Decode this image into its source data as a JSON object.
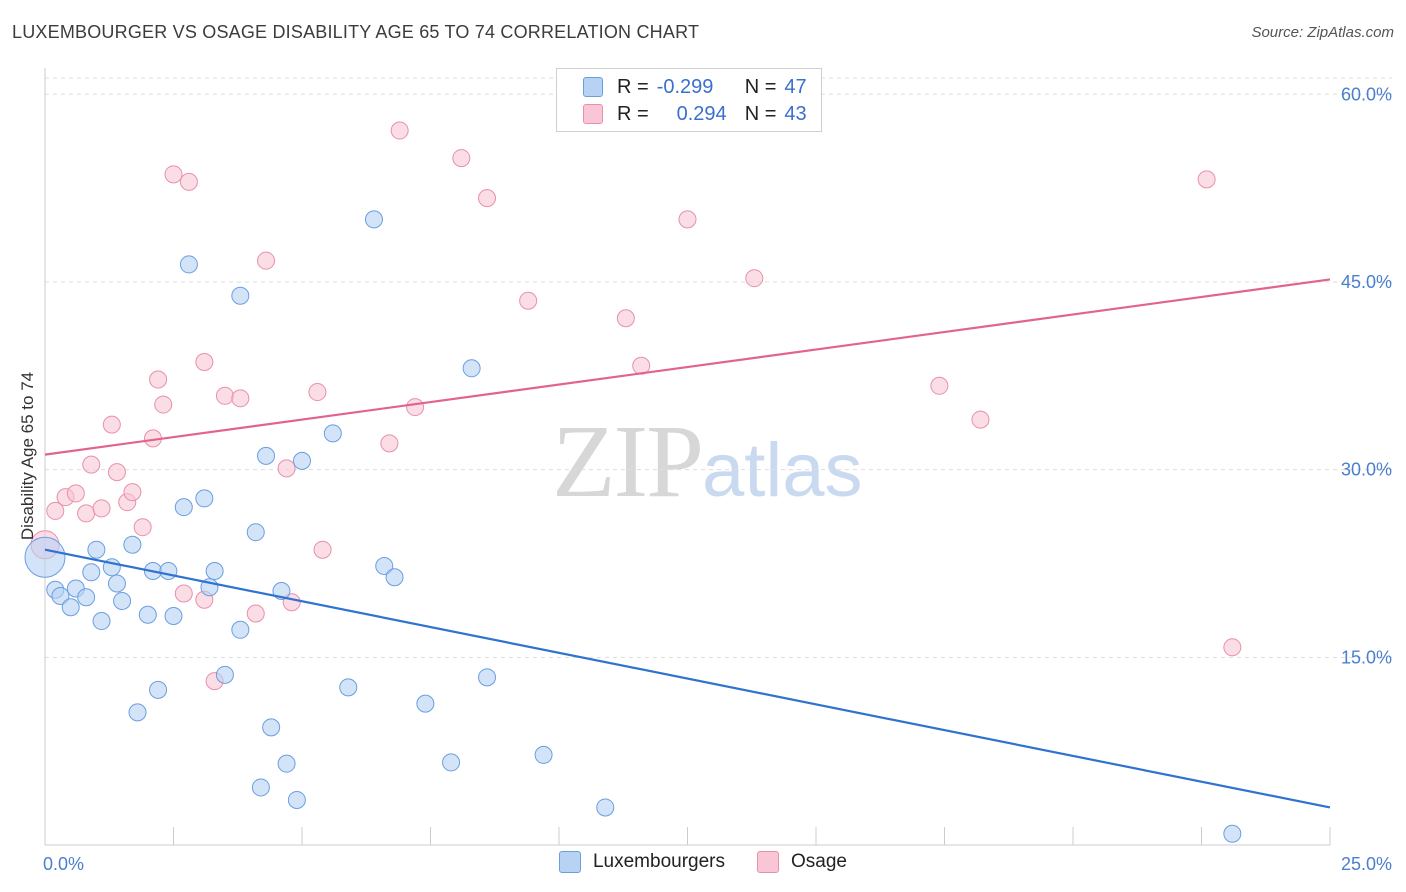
{
  "header": {
    "title": "LUXEMBOURGER VS OSAGE DISABILITY AGE 65 TO 74 CORRELATION CHART",
    "source": "Source: ZipAtlas.com"
  },
  "watermark": {
    "zip": "ZIP",
    "atlas": "atlas"
  },
  "legend": {
    "rows": [
      {
        "r_label": "R =",
        "r_value": "-0.299",
        "n_label": "N =",
        "n_value": "47"
      },
      {
        "r_label": "R =",
        "r_value": "0.294",
        "n_label": "N =",
        "n_value": "43"
      }
    ]
  },
  "bottom_legend": {
    "items": [
      "Luxembourgers",
      "Osage"
    ]
  },
  "colors": {
    "blue_fill": "#b8d2f3",
    "blue_stroke": "#6a9ee0",
    "blue_line": "#2f72d0",
    "pink_fill": "#f8c6d5",
    "pink_stroke": "#e890ab",
    "pink_line": "#e0648e",
    "grid": "#dddddd",
    "tick_text": "#4a7fd0"
  },
  "chart_data": {
    "type": "scatter",
    "title": "LUXEMBOURGER VS OSAGE DISABILITY AGE 65 TO 74 CORRELATION CHART",
    "xlabel": "",
    "ylabel": "Disability Age 65 to 74",
    "xlim": [
      0,
      25
    ],
    "ylim": [
      0,
      60
    ],
    "x_tick_labels": [
      "0.0%",
      "25.0%"
    ],
    "y_ticks": [
      15,
      30,
      45,
      60
    ],
    "y_tick_labels": [
      "15.0%",
      "30.0%",
      "45.0%",
      "60.0%"
    ],
    "grid": true,
    "series": [
      {
        "name": "Luxembourgers",
        "R": -0.299,
        "N": 47,
        "trend": {
          "x": [
            0,
            25
          ],
          "y": [
            23.6,
            3.0
          ]
        },
        "points": [
          [
            0.2,
            20.4
          ],
          [
            0.3,
            19.9
          ],
          [
            0.5,
            19.0
          ],
          [
            0.6,
            20.5
          ],
          [
            0.8,
            19.8
          ],
          [
            0.9,
            21.8
          ],
          [
            1.0,
            23.6
          ],
          [
            1.1,
            17.9
          ],
          [
            1.3,
            22.2
          ],
          [
            1.4,
            20.9
          ],
          [
            1.5,
            19.5
          ],
          [
            1.7,
            24.0
          ],
          [
            1.8,
            10.6
          ],
          [
            2.0,
            18.4
          ],
          [
            2.1,
            21.9
          ],
          [
            2.2,
            12.4
          ],
          [
            2.4,
            21.9
          ],
          [
            2.5,
            18.3
          ],
          [
            2.7,
            27.0
          ],
          [
            2.8,
            46.4
          ],
          [
            3.1,
            27.7
          ],
          [
            3.2,
            20.6
          ],
          [
            3.3,
            21.9
          ],
          [
            3.5,
            13.6
          ],
          [
            3.8,
            17.2
          ],
          [
            3.8,
            43.9
          ],
          [
            4.1,
            25.0
          ],
          [
            4.2,
            4.6
          ],
          [
            4.3,
            31.1
          ],
          [
            4.4,
            9.4
          ],
          [
            4.6,
            20.3
          ],
          [
            4.7,
            6.5
          ],
          [
            4.9,
            3.6
          ],
          [
            5.0,
            30.7
          ],
          [
            5.6,
            32.9
          ],
          [
            5.9,
            12.6
          ],
          [
            6.4,
            50.0
          ],
          [
            6.6,
            22.3
          ],
          [
            6.8,
            21.4
          ],
          [
            7.4,
            11.3
          ],
          [
            7.9,
            6.6
          ],
          [
            8.3,
            38.1
          ],
          [
            8.6,
            13.4
          ],
          [
            9.7,
            7.2
          ],
          [
            10.9,
            3.0
          ],
          [
            23.1,
            0.9
          ],
          [
            0.0,
            23.0
          ]
        ]
      },
      {
        "name": "Osage",
        "R": 0.294,
        "N": 43,
        "trend": {
          "x": [
            0,
            25
          ],
          "y": [
            31.2,
            45.2
          ]
        },
        "points": [
          [
            0.2,
            26.7
          ],
          [
            0.4,
            27.8
          ],
          [
            0.6,
            28.1
          ],
          [
            0.8,
            26.5
          ],
          [
            0.9,
            30.4
          ],
          [
            1.1,
            26.9
          ],
          [
            1.3,
            33.6
          ],
          [
            1.4,
            29.8
          ],
          [
            1.6,
            27.4
          ],
          [
            1.7,
            28.2
          ],
          [
            1.9,
            25.4
          ],
          [
            2.1,
            32.5
          ],
          [
            2.2,
            37.2
          ],
          [
            2.3,
            35.2
          ],
          [
            2.5,
            53.6
          ],
          [
            2.7,
            20.1
          ],
          [
            2.8,
            53.0
          ],
          [
            3.1,
            19.6
          ],
          [
            3.1,
            38.6
          ],
          [
            3.3,
            13.1
          ],
          [
            3.5,
            35.9
          ],
          [
            3.8,
            35.7
          ],
          [
            4.1,
            18.5
          ],
          [
            4.3,
            46.7
          ],
          [
            4.7,
            30.1
          ],
          [
            4.8,
            19.4
          ],
          [
            5.3,
            36.2
          ],
          [
            5.4,
            23.6
          ],
          [
            6.7,
            32.1
          ],
          [
            6.9,
            57.1
          ],
          [
            7.2,
            35.0
          ],
          [
            8.1,
            54.9
          ],
          [
            8.6,
            51.7
          ],
          [
            9.4,
            43.5
          ],
          [
            11.3,
            42.1
          ],
          [
            11.6,
            38.3
          ],
          [
            12.5,
            50.0
          ],
          [
            13.8,
            45.3
          ],
          [
            17.4,
            36.7
          ],
          [
            18.2,
            34.0
          ],
          [
            22.6,
            53.2
          ],
          [
            23.1,
            15.8
          ],
          [
            0.0,
            24.0
          ]
        ]
      }
    ]
  }
}
